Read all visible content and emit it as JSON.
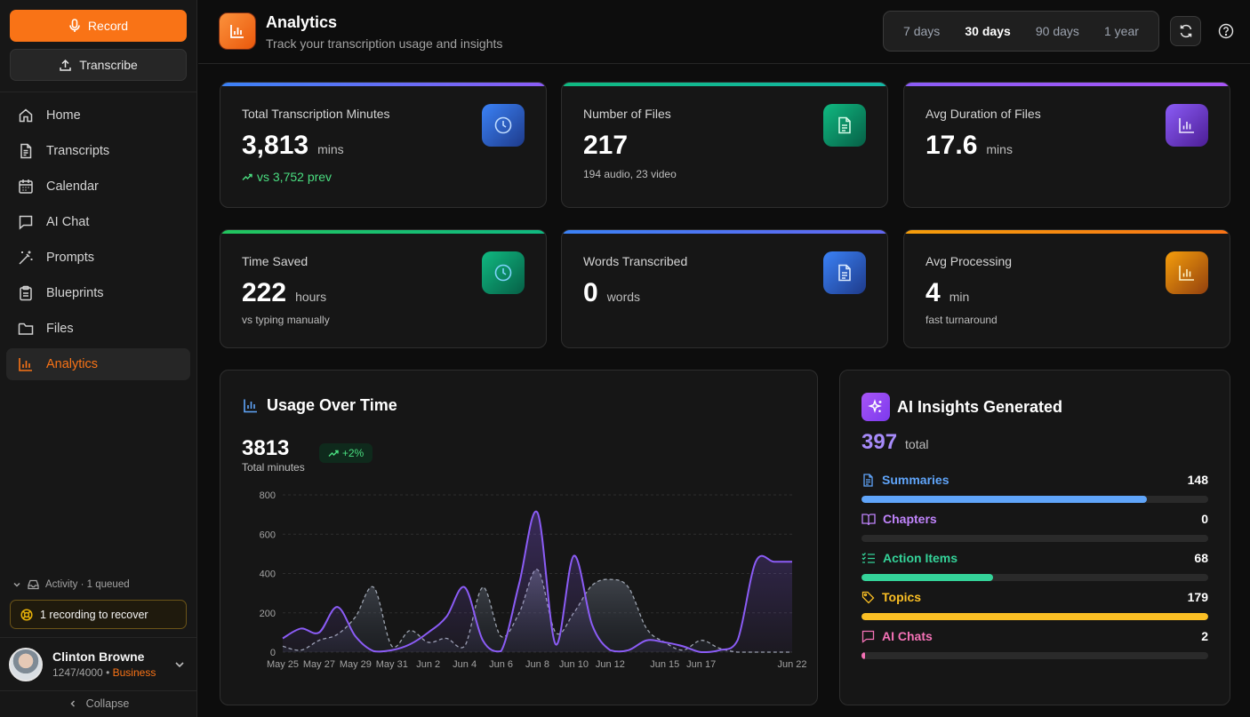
{
  "sidebar": {
    "record_label": "Record",
    "transcribe_label": "Transcribe",
    "nav": [
      {
        "label": "Home",
        "icon": "home-icon"
      },
      {
        "label": "Transcripts",
        "icon": "document-icon"
      },
      {
        "label": "Calendar",
        "icon": "calendar-icon"
      },
      {
        "label": "AI Chat",
        "icon": "chat-icon"
      },
      {
        "label": "Prompts",
        "icon": "magic-wand-icon"
      },
      {
        "label": "Blueprints",
        "icon": "clipboard-icon"
      },
      {
        "label": "Files",
        "icon": "folder-icon"
      },
      {
        "label": "Analytics",
        "icon": "bar-chart-icon"
      }
    ],
    "activity_label": "Activity · 1 queued",
    "recover_label": "1 recording to recover",
    "user": {
      "name": "Clinton Browne",
      "usage": "1247/4000",
      "separator": "•",
      "plan": "Business"
    },
    "collapse_label": "Collapse"
  },
  "header": {
    "title": "Analytics",
    "subtitle": "Track your transcription usage and insights",
    "ranges": [
      "7 days",
      "30 days",
      "90 days",
      "1 year"
    ],
    "active_range": "30 days"
  },
  "stats": [
    {
      "label": "Total Transcription Minutes",
      "value": "3,813",
      "unit": "mins",
      "sub": "vs 3,752 prev",
      "accent": "#6366f1"
    },
    {
      "label": "Number of Files",
      "value": "217",
      "unit": "",
      "sub": "194 audio, 23 video",
      "accent": "#10b981"
    },
    {
      "label": "Avg Duration of Files",
      "value": "17.6",
      "unit": "mins",
      "sub": "",
      "accent": "#8b5cf6"
    },
    {
      "label": "Time Saved",
      "value": "222",
      "unit": "hours",
      "sub": "vs typing manually",
      "accent": "#22c55e"
    },
    {
      "label": "Words Transcribed",
      "value": "0",
      "unit": "words",
      "sub": "",
      "accent": "#3b82f6"
    },
    {
      "label": "Avg Processing",
      "value": "4",
      "unit": "min",
      "sub": "fast turnaround",
      "accent": "#f59e0b"
    }
  ],
  "usage": {
    "title": "Usage Over Time",
    "total": "3813",
    "total_label": "Total minutes",
    "trend": "+2%"
  },
  "chart_data": {
    "type": "area",
    "title": "Usage Over Time",
    "x": [
      "May 25",
      "May 26",
      "May 27",
      "May 28",
      "May 29",
      "May 30",
      "May 31",
      "Jun 1",
      "Jun 2",
      "Jun 3",
      "Jun 4",
      "Jun 5",
      "Jun 6",
      "Jun 7",
      "Jun 8",
      "Jun 9",
      "Jun 10",
      "Jun 11",
      "Jun 12",
      "Jun 13",
      "Jun 14",
      "Jun 15",
      "Jun 16",
      "Jun 17",
      "Jun 18",
      "Jun 19",
      "Jun 20",
      "Jun 21",
      "Jun 22"
    ],
    "x_tick_labels": [
      "May 25",
      "May 27",
      "May 29",
      "May 31",
      "Jun 2",
      "Jun 4",
      "Jun 6",
      "Jun 8",
      "Jun 10",
      "Jun 12",
      "Jun 15",
      "Jun 17",
      "Jun 22"
    ],
    "ylim": [
      0,
      800
    ],
    "yticks": [
      0,
      200,
      400,
      600,
      800
    ],
    "grid": true,
    "series": [
      {
        "values": [
          70,
          120,
          100,
          230,
          80,
          5,
          10,
          40,
          100,
          180,
          330,
          60,
          5,
          350,
          710,
          40,
          490,
          140,
          10,
          10,
          60,
          50,
          30,
          0,
          10,
          60,
          460,
          460,
          460
        ],
        "style": "solid",
        "color": "#8b5cf6"
      },
      {
        "values": [
          30,
          10,
          60,
          90,
          180,
          330,
          30,
          110,
          50,
          70,
          30,
          330,
          80,
          200,
          420,
          100,
          200,
          340,
          370,
          330,
          120,
          50,
          10,
          60,
          20,
          0,
          0,
          0,
          0
        ],
        "style": "dashed",
        "color": "#9ca3af"
      }
    ]
  },
  "insights": {
    "title": "AI Insights Generated",
    "total": "397",
    "total_label": "total",
    "items": [
      {
        "label": "Summaries",
        "count": "148",
        "fraction": 0.824,
        "color": "#60a5fa",
        "icon": "document-icon"
      },
      {
        "label": "Chapters",
        "count": "0",
        "fraction": 0,
        "color": "#c084fc",
        "icon": "book-icon"
      },
      {
        "label": "Action Items",
        "count": "68",
        "fraction": 0.379,
        "color": "#34d399",
        "icon": "checklist-icon"
      },
      {
        "label": "Topics",
        "count": "179",
        "fraction": 1.0,
        "color": "#fbbf24",
        "icon": "tag-icon"
      },
      {
        "label": "AI Chats",
        "count": "2",
        "fraction": 0.011,
        "color": "#f472b6",
        "icon": "chat-icon"
      }
    ]
  }
}
